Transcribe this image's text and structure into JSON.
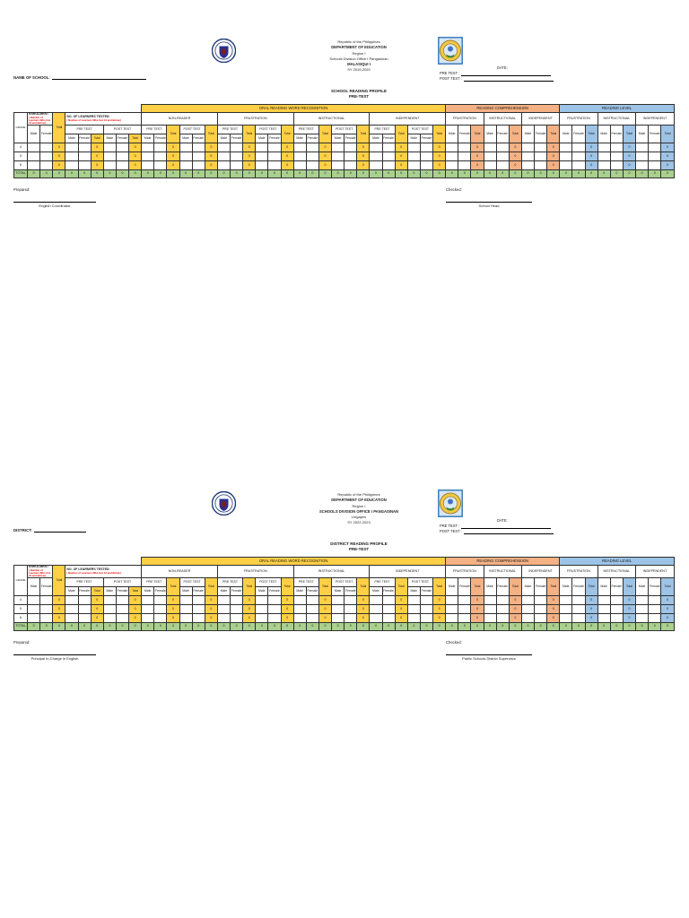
{
  "page1": {
    "header": {
      "line1": "Republic of the Philippines",
      "line2": "DEPARTMENT OF EDUCATION",
      "line3": "Region I",
      "line4": "Schools Division Office I Pangasinan",
      "line5": "MALASIQUI I",
      "line6": "SY 2019-2020"
    },
    "name_label": "NAME OF SCHOOL:",
    "date_label": "DATE:",
    "pretest_label": "PRE TEST :",
    "posttest_label": "POST TEST :",
    "title_line1": "SCHOOL READING PROFILE",
    "title_line2": "PRE-TEST",
    "prepared_label": "Prepared:",
    "prepared_role": "English Coordinator",
    "checked_label": "Checked:",
    "checked_role": "School Head"
  },
  "page2": {
    "header": {
      "line1": "Republic of the Philippines",
      "line2": "DEPARTMENT OF EDUCATION",
      "line3": "Region I",
      "line4": "SCHOOLS DIVISION OFFICE I PANGASINAN",
      "line5": "Lingayen",
      "line6": "SY 2022-2023"
    },
    "name_label": "DISTRICT:",
    "date_label": "DATE:",
    "pretest_label": "PRE TEST :",
    "posttest_label": "POST TEST :",
    "title_line1": "DISTRICT READING PROFILE",
    "title_line2": "PRE-TEST",
    "prepared_label": "Prepared:",
    "prepared_role": "Principal In-Charge in English",
    "checked_label": "Checked:",
    "checked_role": "Public Schools District Supervisor"
  },
  "table": {
    "grade_label": "GRADE",
    "enrolment_label": "ENROLMENT",
    "enrolment_note": "( Number of Learners Who Got 13 and Below)",
    "learners_tested_label": "NO. OF LEARNERS TESTED:",
    "learners_tested_note": "( Number of Learners Who Got 13 and Below)",
    "total_label": "Total",
    "pre_test_label": "PRE TEST",
    "post_test_label": "POST TEST",
    "male_label": "Male",
    "female_label": "Female",
    "oral_band_label": "ORAL READING WORD RECOGNITION",
    "reading_comprehension_band_label": "READING COMPREHENSION",
    "reading_level_band_label": "READING LEVEL",
    "oral_groups": [
      "NON-READER",
      "FRUSTRATION",
      "INSTRUCTIONAL",
      "INDEPENDENT"
    ],
    "comprehension_groups": [
      "FRUSTRATION",
      "INSTRUCTIONAL",
      "INDEPENDENT"
    ],
    "reading_level_groups": [
      "FRUSTRATION",
      "INSTRUCTIONAL",
      "INDEPENDENT"
    ],
    "grade_rows": [
      "4",
      "5",
      "6"
    ],
    "total_row_label": "TOTAL",
    "cell_zero": "0",
    "colors": {
      "total_column_yellow": "#FFCF45",
      "comprehension_salmon": "#F4B183",
      "reading_level_blue": "#9DC3E6",
      "total_row_green": "#A9D08E",
      "note_red": "#EA0000"
    }
  }
}
